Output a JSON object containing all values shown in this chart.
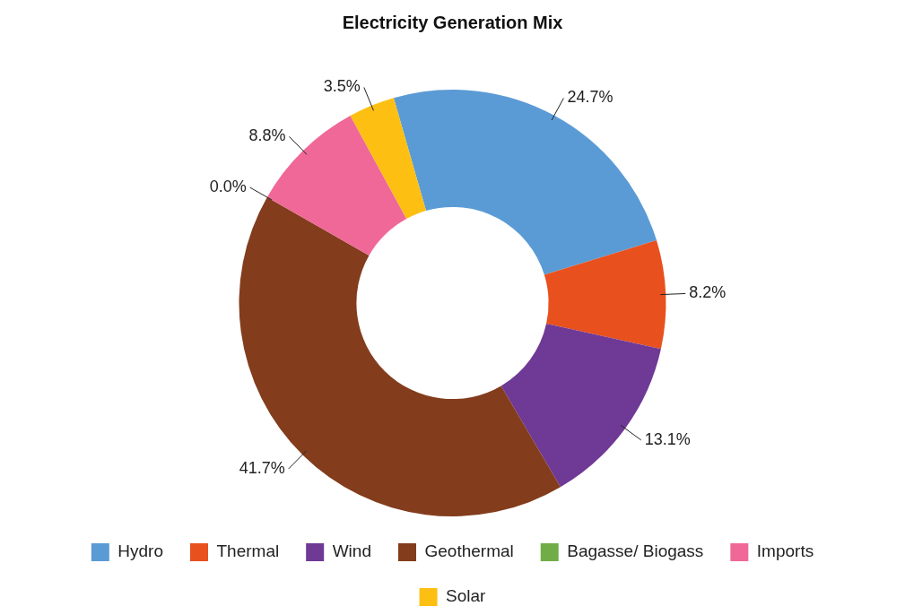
{
  "chart_data": {
    "type": "donut",
    "title": "Electricity Generation Mix",
    "categories": [
      "Hydro",
      "Thermal",
      "Wind",
      "Geothermal",
      "Bagasse/ Biogass",
      "Imports",
      "Solar"
    ],
    "values": [
      24.7,
      8.2,
      13.1,
      41.7,
      0.0,
      8.8,
      3.5
    ],
    "colors": [
      "#5b9bd5",
      "#e8501e",
      "#6f3996",
      "#833c1c",
      "#70ad47",
      "#f06897",
      "#fdbf12"
    ],
    "value_labels": [
      "24.7%",
      "8.2%",
      "13.1%",
      "41.7%",
      "0.0%",
      "8.8%",
      "3.5%"
    ],
    "legend": "bottom"
  }
}
